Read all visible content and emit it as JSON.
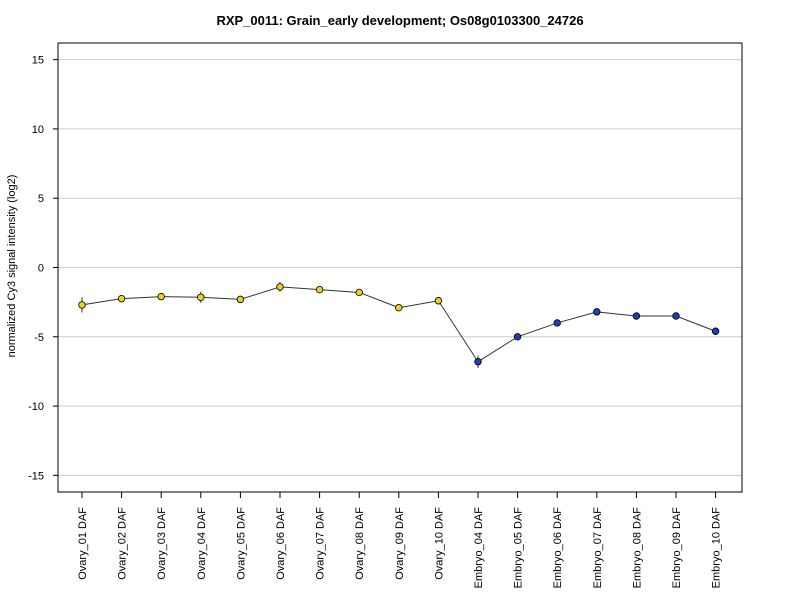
{
  "chart_data": {
    "type": "line",
    "title": "RXP_0011: Grain_early development; Os08g0103300_24726",
    "xlabel": "",
    "ylabel": "normalized Cy3 signal intensity (log2)",
    "ylim": [
      -16.2,
      16.2
    ],
    "yticks": [
      15,
      10,
      5,
      0,
      -5,
      -10,
      -15
    ],
    "grid": true,
    "categories": [
      "Ovary_01 DAF",
      "Ovary_02 DAF",
      "Ovary_03 DAF",
      "Ovary_04 DAF",
      "Ovary_05 DAF",
      "Ovary_06 DAF",
      "Ovary_07 DAF",
      "Ovary_08 DAF",
      "Ovary_09 DAF",
      "Ovary_10 DAF",
      "Embryo_04 DAF",
      "Embryo_05 DAF",
      "Embryo_06 DAF",
      "Embryo_07 DAF",
      "Embryo_08 DAF",
      "Embryo_09 DAF",
      "Embryo_10 DAF"
    ],
    "values": [
      -2.7,
      -2.25,
      -2.1,
      -2.15,
      -2.3,
      -1.4,
      -1.6,
      -1.8,
      -2.9,
      -2.4,
      -6.8,
      -5.0,
      -4.0,
      -3.2,
      -3.5,
      -3.5,
      -4.6
    ],
    "errors": [
      0.55,
      0.25,
      0.15,
      0.4,
      0.2,
      0.35,
      0.15,
      0.15,
      0.15,
      0.15,
      0.45,
      0.15,
      0.15,
      0.25,
      0.15,
      0.15,
      0.15
    ],
    "point_colors": [
      "#e8d21d",
      "#e8d21d",
      "#e8d21d",
      "#e8d21d",
      "#e8d21d",
      "#e8d21d",
      "#e8d21d",
      "#e8d21d",
      "#e8d21d",
      "#e8d21d",
      "#1f3fb8",
      "#1f3fb8",
      "#1f3fb8",
      "#1f3fb8",
      "#1f3fb8",
      "#1f3fb8",
      "#1f3fb8"
    ],
    "colors": {
      "ovary": "#e8d21d",
      "embryo": "#1f3fb8",
      "line": "#333333",
      "grid": "#cccccc"
    }
  }
}
